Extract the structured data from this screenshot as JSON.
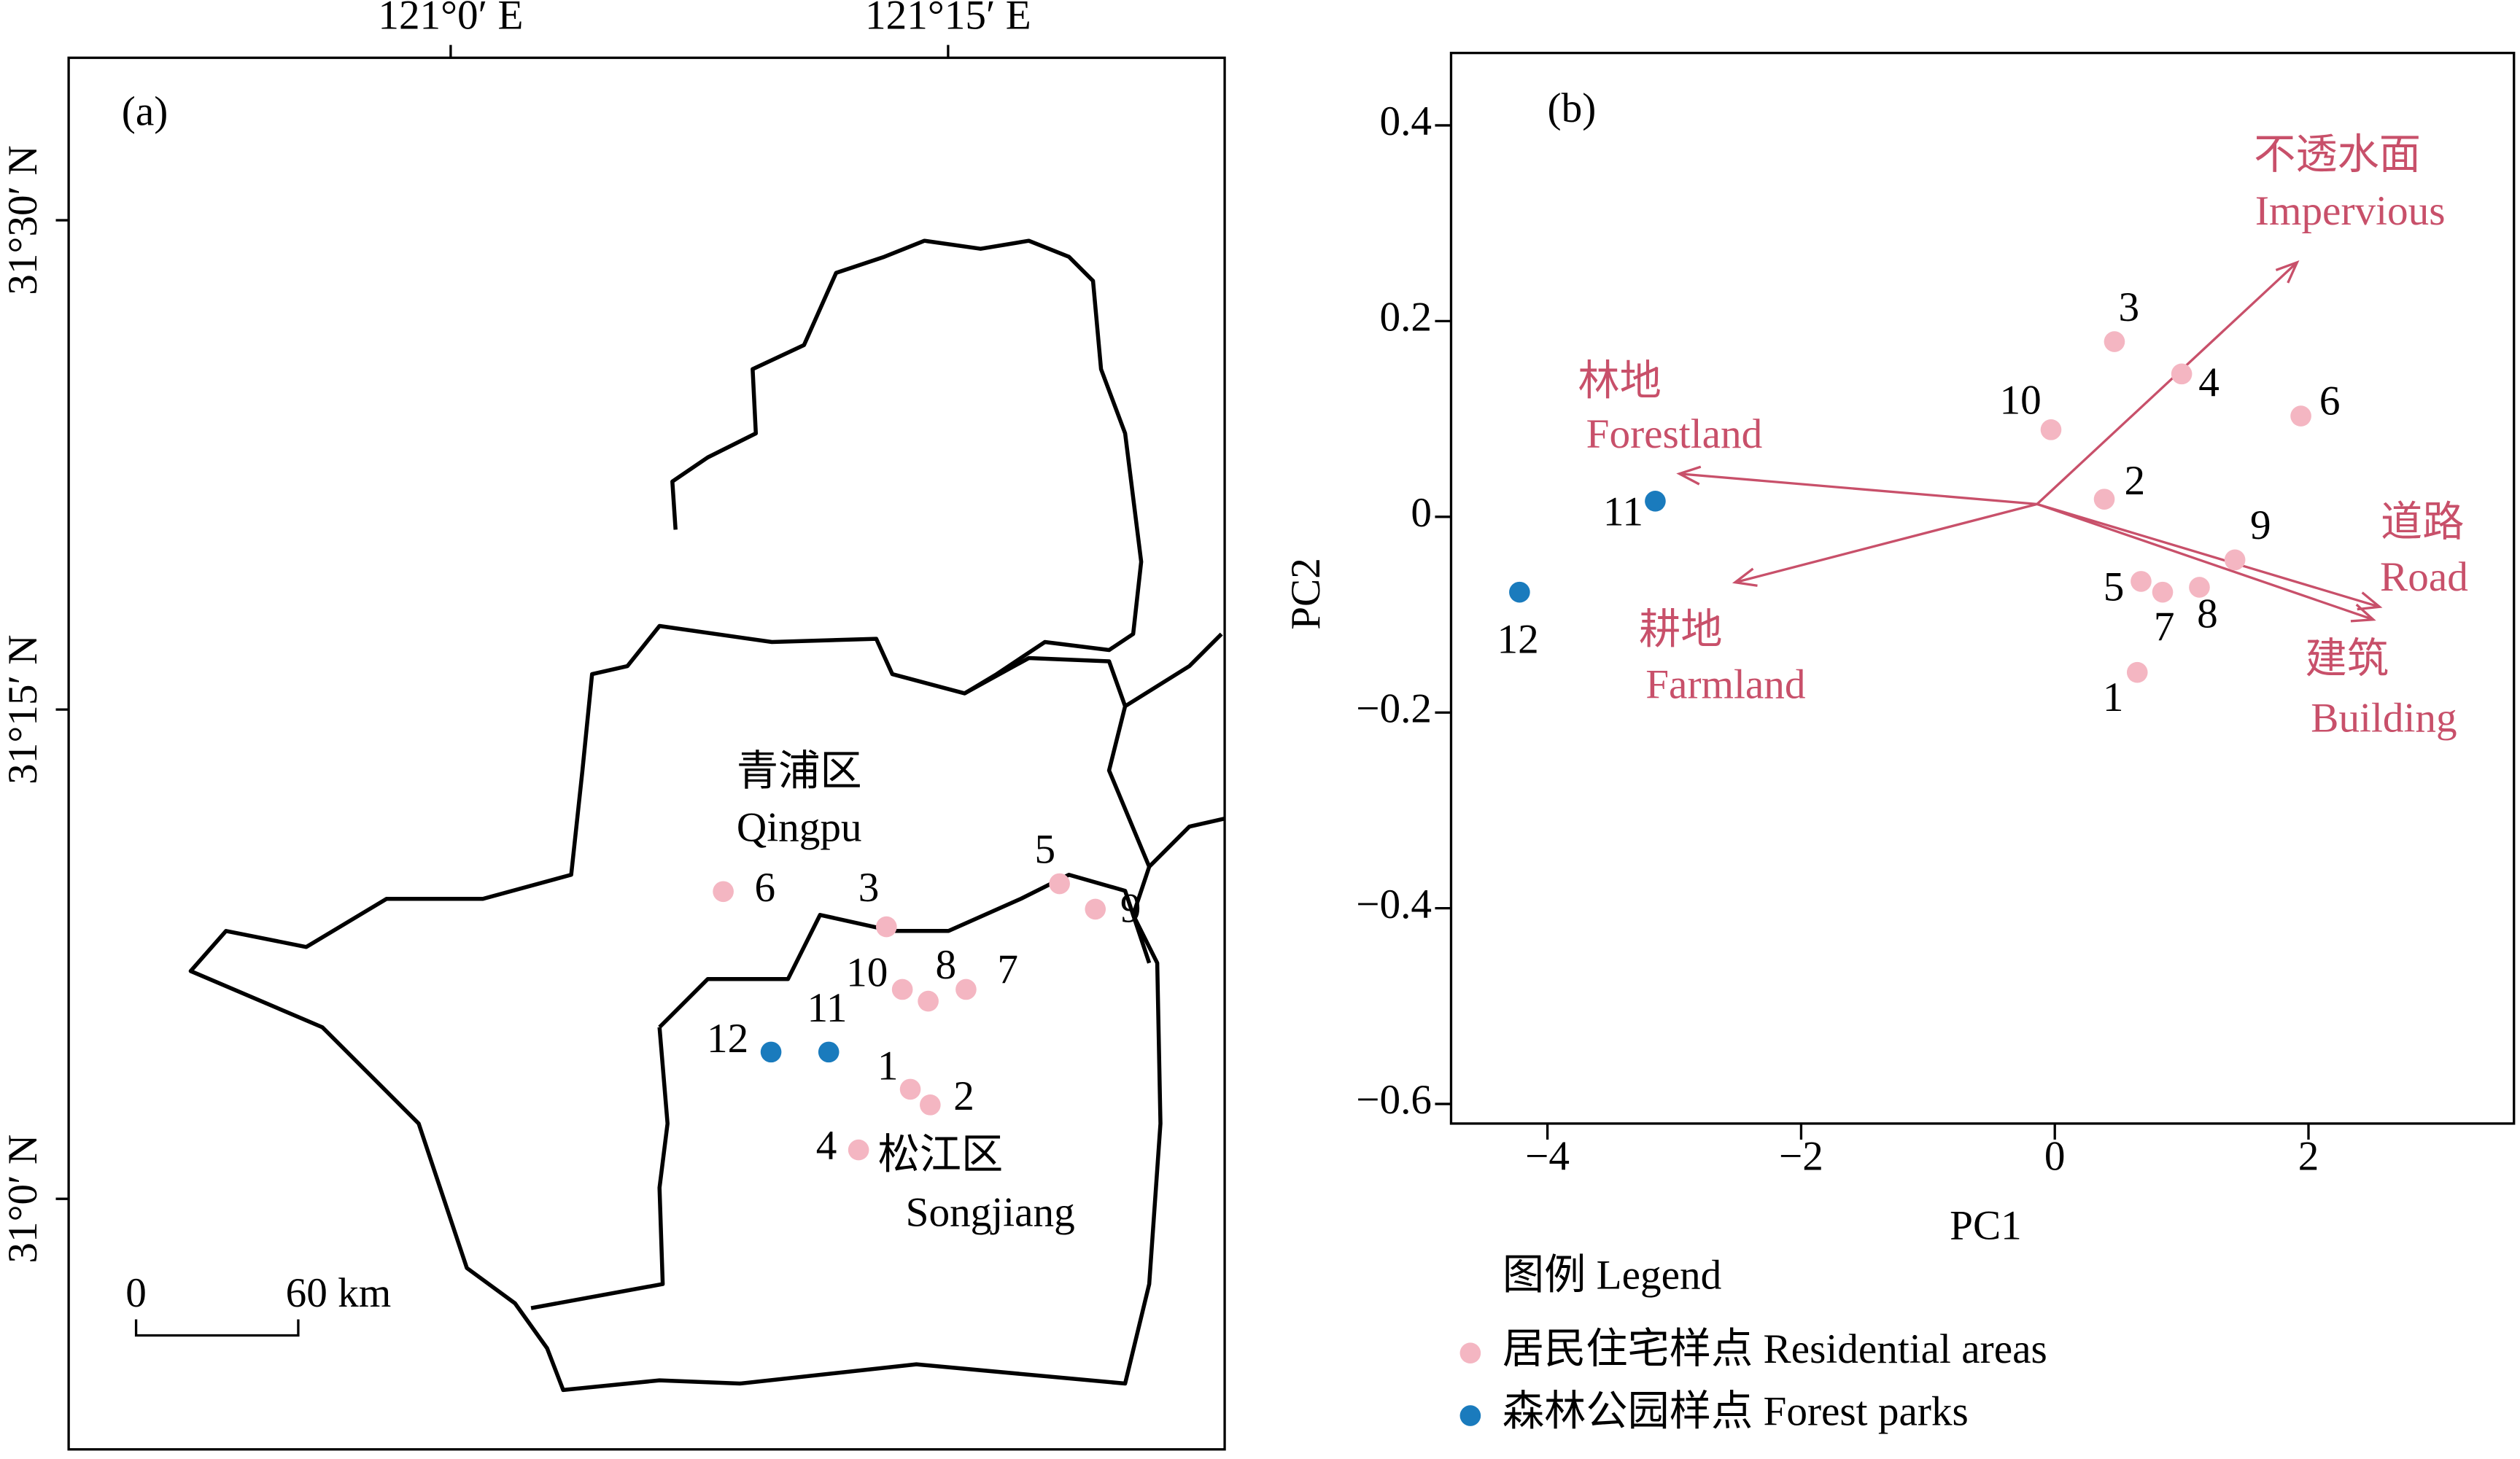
{
  "chart_data": [
    {
      "type": "map",
      "panel": "(a)",
      "xlim": [
        120.808,
        121.389
      ],
      "ylim": [
        30.872,
        31.583
      ],
      "xticks": [
        {
          "value": 121,
          "label": "121°0′ E"
        },
        {
          "value": 121.25,
          "label": "121°15′ E"
        }
      ],
      "yticks": [
        {
          "value": 31,
          "label": "31°0′ N"
        },
        {
          "value": 31.25,
          "label": "31°15′ N"
        },
        {
          "value": 31.5,
          "label": "31°30′ N"
        }
      ],
      "districts": [
        {
          "cn": "青浦区",
          "en": "Qingpu"
        },
        {
          "cn": "松江区",
          "en": "Songjiang"
        }
      ],
      "scale_bar": [
        "0",
        "60 km"
      ],
      "series": [
        {
          "color": "#f4b6c2",
          "labels": [
            "6",
            "3",
            "5",
            "9",
            "10",
            "8",
            "7",
            "1",
            "2",
            "4"
          ],
          "x": [
            121.137,
            121.219,
            121.306,
            121.324,
            121.227,
            121.24,
            121.259,
            121.231,
            121.241,
            121.205
          ],
          "values": [
            31.157,
            31.139,
            31.161,
            31.148,
            31.107,
            31.101,
            31.107,
            31.056,
            31.048,
            31.025
          ]
        },
        {
          "color": "#1a7bbd",
          "labels": [
            "12",
            "11"
          ],
          "x": [
            121.161,
            121.19
          ],
          "values": [
            31.075,
            31.075
          ]
        }
      ]
    },
    {
      "type": "biplot",
      "panel": "(b)",
      "x_label": "PC1",
      "y_label": "PC2",
      "xlim": [
        -4.76,
        3.62
      ],
      "ylim": [
        -0.62,
        0.474
      ],
      "xticks": [
        {
          "value": -4,
          "label": "−4"
        },
        {
          "value": -2,
          "label": "−2"
        },
        0,
        2
      ],
      "yticks": [
        {
          "value": -0.6,
          "label": "−0.6"
        },
        {
          "value": -0.4,
          "label": "−0.4"
        },
        {
          "value": -0.2,
          "label": "−0.2"
        },
        0,
        0.2,
        0.4
      ],
      "legend_title": "图例 Legend",
      "series": [
        {
          "name": "居民住宅样点 Residential areas",
          "color": "#f4b6c2",
          "labels": [
            "6",
            "3",
            "5",
            "9",
            "10",
            "8",
            "7",
            "1",
            "2",
            "4"
          ],
          "x": [
            1.94,
            0.47,
            0.68,
            1.42,
            -0.03,
            1.14,
            0.85,
            0.65,
            0.39,
            1.0
          ],
          "values": [
            0.103,
            0.179,
            -0.066,
            -0.044,
            0.089,
            -0.072,
            -0.077,
            -0.159,
            0.018,
            0.146
          ]
        },
        {
          "name": "森林公园样点 Forest parks",
          "color": "#1a7bbd",
          "labels": [
            "12",
            "11"
          ],
          "x": [
            -4.22,
            -3.15
          ],
          "values": [
            -0.077,
            0.016
          ]
        }
      ],
      "loading_color": "#c8506a",
      "arrow_origin": [
        -0.14,
        0.013
      ],
      "loadings": [
        {
          "cn": "不透水面",
          "en": "Impervious",
          "x": 1.91,
          "y": 0.26
        },
        {
          "cn": "林地",
          "en": "Forestland",
          "x": -2.96,
          "y": 0.044
        },
        {
          "cn": "耕地",
          "en": "Farmland",
          "x": -2.52,
          "y": -0.067
        },
        {
          "cn": "道路",
          "en": "Road",
          "x": 2.56,
          "y": -0.092
        },
        {
          "cn": "建筑",
          "en": "Building",
          "x": 2.51,
          "y": -0.105
        }
      ]
    }
  ]
}
